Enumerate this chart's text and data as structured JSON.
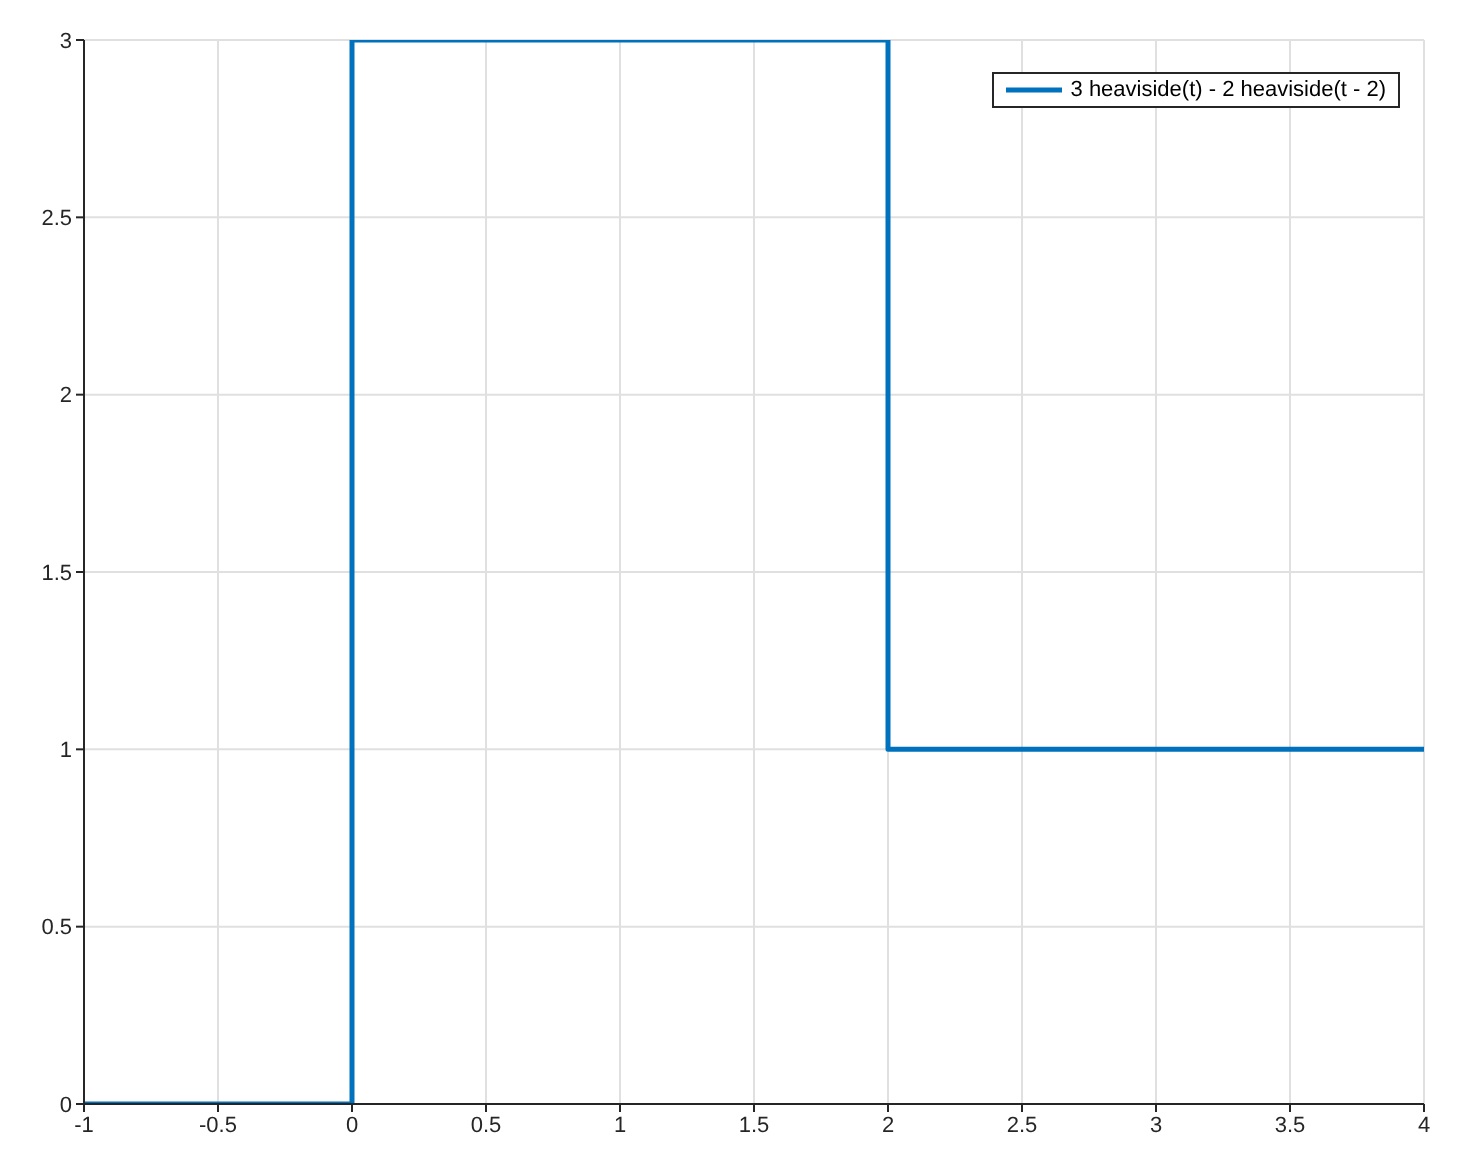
{
  "chart_data": {
    "type": "step",
    "x": [
      -1,
      0,
      2,
      4
    ],
    "series": [
      {
        "name": "3 heaviside(t) - 2 heaviside(t - 2)",
        "color": "#0072bd",
        "values": [
          0,
          3,
          1,
          1
        ]
      }
    ],
    "xlim": [
      -1,
      4
    ],
    "xticks": [
      -1,
      -0.5,
      0,
      0.5,
      1,
      1.5,
      2,
      2.5,
      3,
      3.5,
      4
    ],
    "ylim": [
      0,
      3
    ],
    "yticks": [
      0,
      0.5,
      1,
      1.5,
      2,
      2.5,
      3
    ],
    "grid": true,
    "legend": "top right",
    "line_style": "solid",
    "marker": "none"
  }
}
